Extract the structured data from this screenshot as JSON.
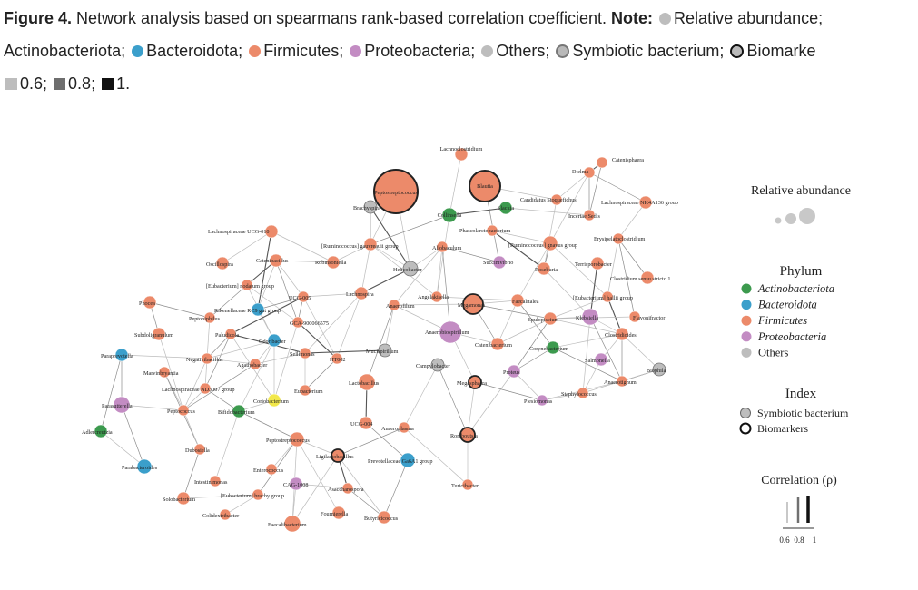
{
  "caption": {
    "figure_label": "Figure 4.",
    "title": "Network analysis based on spearmans rank-based correlation coefficient.",
    "note_label": "Note:",
    "relative_abundance": "Relative abundance;",
    "actinobacteriota": "Actinobacteriota;",
    "bacteroidota": "Bacteroidota;",
    "firmicutes": "Firmicutes;",
    "proteobacteria": "Proteobacteria;",
    "others": "Others;",
    "symbiotic": "Symbiotic bacterium;",
    "biomarkers": "Biomarke",
    "corr_06": "0.6;",
    "corr_08": "0.8;",
    "corr_1": "1."
  },
  "colors": {
    "actinobacteriota": "#3c9a4e",
    "bacteroidota": "#3b9fcb",
    "firmicutes": "#ec8a6a",
    "proteobacteria": "#c38cc3",
    "others": "#bdbdbd",
    "core": "#f2e84a",
    "edge": "#8c8c8c",
    "text": "#222222"
  },
  "legend": {
    "abundance_title": "Relative abundance",
    "phylum_title": "Phylum",
    "phylum_items": [
      {
        "label": "Actinobacteriota",
        "color": "#3c9a4e"
      },
      {
        "label": "Bacteroidota",
        "color": "#3b9fcb"
      },
      {
        "label": "Firmicutes",
        "color": "#ec8a6a"
      },
      {
        "label": "Proteobacteria",
        "color": "#c38cc3"
      },
      {
        "label": "Others",
        "color": "#bdbdbd"
      }
    ],
    "index_title": "Index",
    "index_items": [
      {
        "label": "Symbiotic bacterium"
      },
      {
        "label": "Biomarkers"
      }
    ],
    "correlation_title": "Correlation (ρ)",
    "correlation_ticks": [
      "0.6",
      "0.8",
      "1"
    ]
  },
  "network": {
    "nodes": [
      {
        "id": "lachnoclostridium",
        "label": "Lachnoclostridium",
        "phylum": "firmicutes"
      },
      {
        "id": "catenisphaera",
        "label": "Catenisphaera",
        "phylum": "firmicutes"
      },
      {
        "id": "dielma",
        "label": "Dielma",
        "phylum": "firmicutes"
      },
      {
        "id": "peptostreptococcus",
        "label": "Peptostreptococcus",
        "phylum": "firmicutes",
        "biomarker": true,
        "abundance": "large"
      },
      {
        "id": "blautia",
        "label": "Blautia",
        "phylum": "firmicutes",
        "biomarker": true,
        "abundance": "large"
      },
      {
        "id": "brachyspira",
        "label": "Brachyspira",
        "phylum": "others"
      },
      {
        "id": "collinsella",
        "label": "Collinsella",
        "phylum": "actinobacteriota"
      },
      {
        "id": "slackia",
        "label": "Slackia",
        "phylum": "actinobacteriota"
      },
      {
        "id": "stoquefichus",
        "label": "Candidatus Stoquefichus",
        "phylum": "firmicutes"
      },
      {
        "id": "lachno_nk4a136",
        "label": "Lachnospiraceae NK4A136 group",
        "phylum": "firmicutes"
      },
      {
        "id": "incertae_sedis",
        "label": "Incertae Sedis",
        "phylum": "firmicutes"
      },
      {
        "id": "lachno_ucg010",
        "label": "Lachnospiraceae UCG-010",
        "phylum": "firmicutes"
      },
      {
        "id": "phascolarctobacterium",
        "label": "Phascolarctobacterium",
        "phylum": "firmicutes"
      },
      {
        "id": "erysipelatoclostridium",
        "label": "Erysipelatoclostridium",
        "phylum": "firmicutes"
      },
      {
        "id": "rum_gnavus",
        "label": "[Ruminococcus] gnavus group",
        "phylum": "firmicutes"
      },
      {
        "id": "rum_gauvreauii",
        "label": "[Ruminococcus] gauvreauii group",
        "phylum": "firmicutes"
      },
      {
        "id": "allobaculum",
        "label": "Allobaculum",
        "phylum": "firmicutes"
      },
      {
        "id": "oscillospira",
        "label": "Oscillospira",
        "phylum": "firmicutes"
      },
      {
        "id": "catenibacillus",
        "label": "Catenibacillus",
        "phylum": "firmicutes"
      },
      {
        "id": "robinsoniella",
        "label": "Robinsoniella",
        "phylum": "firmicutes"
      },
      {
        "id": "helicobacter",
        "label": "Helicobacter",
        "phylum": "others"
      },
      {
        "id": "succinivibrio",
        "label": "Succinivibrio",
        "phylum": "proteobacteria"
      },
      {
        "id": "terrisporobacter",
        "label": "Terrisporobacter",
        "phylum": "firmicutes"
      },
      {
        "id": "clostridium_ss1",
        "label": "Clostridium sensu stricto 1",
        "phylum": "firmicutes"
      },
      {
        "id": "roseburia",
        "label": "Roseburia",
        "phylum": "firmicutes"
      },
      {
        "id": "eub_nodatum",
        "label": "[Eubacterium] nodatum group",
        "phylum": "firmicutes"
      },
      {
        "id": "ucg005",
        "label": "UCG-005",
        "phylum": "firmicutes"
      },
      {
        "id": "lachnospira",
        "label": "Lachnospira",
        "phylum": "firmicutes"
      },
      {
        "id": "angelakisella",
        "label": "Angelakisella",
        "phylum": "firmicutes"
      },
      {
        "id": "anaerofilum",
        "label": "Anaerofilum",
        "phylum": "firmicutes"
      },
      {
        "id": "megamonas",
        "label": "Megamonas",
        "phylum": "firmicutes",
        "biomarker": true
      },
      {
        "id": "faecalitalea",
        "label": "Faecalitalea",
        "phylum": "firmicutes"
      },
      {
        "id": "eub_hallii",
        "label": "[Eubacterium] hallii group",
        "phylum": "firmicutes"
      },
      {
        "id": "phocea",
        "label": "Phocea",
        "phylum": "firmicutes"
      },
      {
        "id": "rikenellaceae_rc9",
        "label": "Rikenellaceae RC9 gut group",
        "phylum": "bacteroidota"
      },
      {
        "id": "peptoniphilus",
        "label": "Peptoniphilus",
        "phylum": "firmicutes"
      },
      {
        "id": "gca900066575",
        "label": "GCA-900066575",
        "phylum": "firmicutes"
      },
      {
        "id": "flavonifractor",
        "label": "Flavonifractor",
        "phylum": "firmicutes"
      },
      {
        "id": "epulopiscium",
        "label": "Epulopiscium",
        "phylum": "firmicutes"
      },
      {
        "id": "klebsiella",
        "label": "Klebsiella",
        "phylum": "proteobacteria"
      },
      {
        "id": "anaerobiospirillum",
        "label": "Anaerobiospirillum",
        "phylum": "proteobacteria",
        "abundance": "medium"
      },
      {
        "id": "subdoligranulum",
        "label": "Subdoligranulum",
        "phylum": "firmicutes"
      },
      {
        "id": "paludicola",
        "label": "Paludicola",
        "phylum": "firmicutes"
      },
      {
        "id": "odoribacter",
        "label": "Odoribacter",
        "phylum": "bacteroidota"
      },
      {
        "id": "clostridioides",
        "label": "Clostridioides",
        "phylum": "firmicutes"
      },
      {
        "id": "catenibacterium",
        "label": "Catenibacterium",
        "phylum": "firmicutes"
      },
      {
        "id": "corynebacterium",
        "label": "Corynebacterium",
        "phylum": "actinobacteriota"
      },
      {
        "id": "paraprevotella",
        "label": "Paraprevotella",
        "phylum": "bacteroidota"
      },
      {
        "id": "negativibacillus",
        "label": "Negativibacillus",
        "phylum": "firmicutes"
      },
      {
        "id": "agathobacter",
        "label": "Agathobacter",
        "phylum": "firmicutes"
      },
      {
        "id": "sellimonas",
        "label": "Sellimonas",
        "phylum": "firmicutes"
      },
      {
        "id": "mucispirillum",
        "label": "Mucispirillum",
        "phylum": "others"
      },
      {
        "id": "ht002",
        "label": "HT002",
        "phylum": "firmicutes"
      },
      {
        "id": "salmonella",
        "label": "Salmonella",
        "phylum": "proteobacteria"
      },
      {
        "id": "biophila",
        "label": "Biophila",
        "phylum": "others"
      },
      {
        "id": "marvinbryantia",
        "label": "Marvinbryantia",
        "phylum": "firmicutes"
      },
      {
        "id": "campylobacter",
        "label": "Campylobacter",
        "phylum": "others"
      },
      {
        "id": "proteus",
        "label": "Proteus",
        "phylum": "proteobacteria"
      },
      {
        "id": "anaerotignum",
        "label": "Anaerotignum",
        "phylum": "firmicutes"
      },
      {
        "id": "megasphaera",
        "label": "Megasphaera",
        "phylum": "firmicutes",
        "biomarker": true
      },
      {
        "id": "lachno_nd3007",
        "label": "Lachnospiraceae ND3007 group",
        "phylum": "firmicutes"
      },
      {
        "id": "lactobacillus",
        "label": "Lactobacillus",
        "phylum": "firmicutes"
      },
      {
        "id": "staphylococcus",
        "label": "Staphylococcus",
        "phylum": "firmicutes"
      },
      {
        "id": "plesiomonas",
        "label": "Plesiomonas",
        "phylum": "proteobacteria"
      },
      {
        "id": "eubacterium",
        "label": "Eubacterium",
        "phylum": "firmicutes"
      },
      {
        "id": "parasutterella",
        "label": "Parasutterella",
        "phylum": "proteobacteria"
      },
      {
        "id": "peptococcus",
        "label": "Peptococcus",
        "phylum": "firmicutes"
      },
      {
        "id": "bifidobacterium",
        "label": "Bifidobacterium",
        "phylum": "actinobacteriota"
      },
      {
        "id": "ucg004",
        "label": "UCG-004",
        "phylum": "firmicutes"
      },
      {
        "id": "coriobacterium",
        "label": "Coriobacterium",
        "phylum": "core"
      },
      {
        "id": "anaeroplasma",
        "label": "Anaeroplasma",
        "phylum": "firmicutes"
      },
      {
        "id": "romboutsia",
        "label": "Romboutsia",
        "phylum": "firmicutes",
        "biomarker": true
      },
      {
        "id": "adlercreutzia",
        "label": "Adlercreutzia",
        "phylum": "actinobacteriota"
      },
      {
        "id": "peptostreptococcus2",
        "label": "Peptostreptococcus",
        "phylum": "firmicutes"
      },
      {
        "id": "dubosiella",
        "label": "Dubosiella",
        "phylum": "firmicutes"
      },
      {
        "id": "ligilactobacillus",
        "label": "Ligilactobacillus",
        "phylum": "firmicutes",
        "biomarker": true
      },
      {
        "id": "prevotellaceae_ga6a1",
        "label": "Prevotellaceae Ga6A1 group",
        "phylum": "bacteroidota"
      },
      {
        "id": "parabacteroides",
        "label": "Parabacteroides",
        "phylum": "bacteroidota"
      },
      {
        "id": "enterococcus",
        "label": "Enterococcus",
        "phylum": "firmicutes"
      },
      {
        "id": "intestinimonas",
        "label": "Intestinimonas",
        "phylum": "firmicutes"
      },
      {
        "id": "cag1008",
        "label": "CAG-1008",
        "phylum": "proteobacteria"
      },
      {
        "id": "turicibacter",
        "label": "Turicibacter",
        "phylum": "firmicutes"
      },
      {
        "id": "asaccharospora",
        "label": "Asaccharospora",
        "phylum": "firmicutes"
      },
      {
        "id": "solobacterium",
        "label": "Solobacterium",
        "phylum": "firmicutes"
      },
      {
        "id": "eub_brachy",
        "label": "[Eubacterium] brachy group",
        "phylum": "firmicutes"
      },
      {
        "id": "colidextribacter",
        "label": "Colidextribacter",
        "phylum": "firmicutes"
      },
      {
        "id": "fournierella",
        "label": "Fournierella",
        "phylum": "firmicutes"
      },
      {
        "id": "butyricicoccus",
        "label": "Butyricicoccus",
        "phylum": "firmicutes"
      },
      {
        "id": "faecalibacterium",
        "label": "Faecalibacterium",
        "phylum": "firmicutes"
      }
    ]
  }
}
